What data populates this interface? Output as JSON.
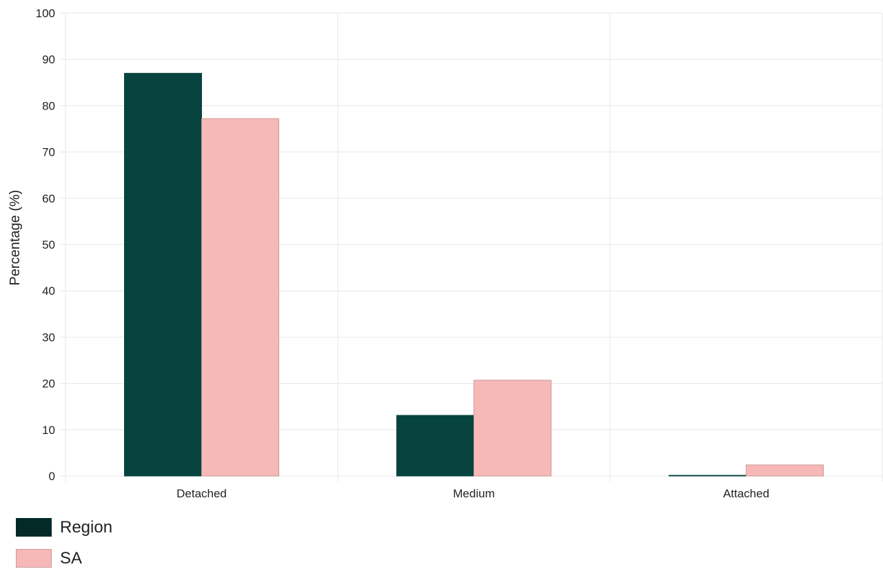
{
  "chart_data": {
    "type": "bar",
    "title": "",
    "xlabel": "",
    "ylabel": "Percentage (%)",
    "ylim": [
      0,
      100
    ],
    "yticks": [
      0,
      10,
      20,
      30,
      40,
      50,
      60,
      70,
      80,
      90,
      100
    ],
    "categories": [
      "Detached",
      "Medium",
      "Attached"
    ],
    "series": [
      {
        "name": "Region",
        "values": [
          87.0,
          13.1,
          0.1
        ],
        "color": "#07443f",
        "legend_color": "#042a28"
      },
      {
        "name": "SA",
        "values": [
          77.2,
          20.7,
          2.4
        ],
        "color": "#f7b8b8",
        "stroke": "#c99a9a"
      }
    ],
    "grid": true,
    "legend_position": "bottom-left"
  }
}
